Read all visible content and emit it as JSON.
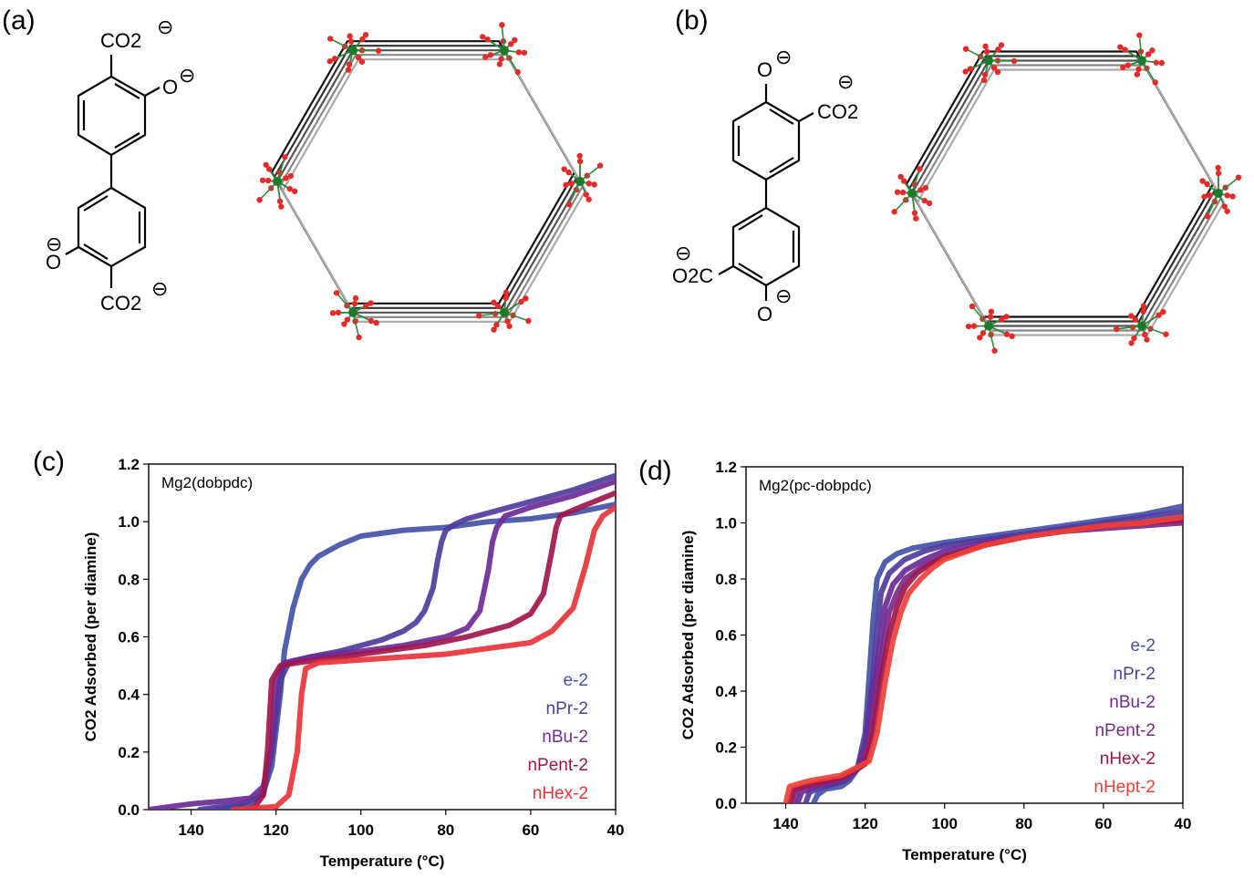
{
  "panels": {
    "a": "(a)",
    "b": "(b)",
    "c": "(c)",
    "d": "(d)"
  },
  "molecule_a": {
    "top": "CO2",
    "top_charge": "⊖",
    "right_o": "O",
    "right_charge": "⊖",
    "left_o": "O",
    "left_charge": "⊖",
    "bottom": "CO2",
    "bottom_charge": "⊖"
  },
  "molecule_b": {
    "top_o": "O",
    "top_charge": "⊖",
    "right": "CO2",
    "right_charge": "⊖",
    "left": "O2C",
    "left_charge": "⊖",
    "bottom_o": "O",
    "bottom_charge": "⊖"
  },
  "colors": {
    "e-2": "#4452a6",
    "nPr-2": "#4f3c9c",
    "nBu-2": "#6d2b97",
    "nPent-2": "#a1164c",
    "nHex-2": "#e8343a",
    "nHept-2": "#ef4037"
  },
  "chart_data": [
    {
      "type": "line",
      "title": "Mg2(dobpdc)",
      "xlabel": "Temperature (°C)",
      "ylabel": "CO2 Adsorbed (per diamine)",
      "xlim": [
        150,
        40
      ],
      "ylim": [
        0,
        1.2
      ],
      "xticks": [
        140,
        120,
        100,
        80,
        60,
        40
      ],
      "yticks": [
        0.0,
        0.2,
        0.4,
        0.6,
        0.8,
        1.0,
        1.2
      ],
      "legend": "bottom-right",
      "series": [
        {
          "name": "e-2",
          "color": "#4452a6",
          "x": [
            134,
            126,
            123,
            121,
            119,
            118,
            116,
            114,
            112,
            110,
            105,
            100,
            90,
            80,
            70,
            60,
            50,
            40
          ],
          "y": [
            0.0,
            0.02,
            0.06,
            0.15,
            0.4,
            0.55,
            0.7,
            0.8,
            0.85,
            0.88,
            0.92,
            0.95,
            0.97,
            0.98,
            1.0,
            1.01,
            1.03,
            1.06
          ]
        },
        {
          "name": "nPr-2",
          "color": "#4f3c9c",
          "x": [
            138,
            128,
            123,
            121,
            119,
            117,
            112,
            105,
            100,
            95,
            90,
            87,
            85,
            83,
            82,
            81,
            80,
            78,
            75,
            70,
            60,
            50,
            40
          ],
          "y": [
            0.0,
            0.02,
            0.05,
            0.2,
            0.45,
            0.51,
            0.53,
            0.55,
            0.57,
            0.59,
            0.62,
            0.65,
            0.69,
            0.77,
            0.86,
            0.93,
            0.97,
            0.99,
            1.01,
            1.03,
            1.07,
            1.11,
            1.16
          ]
        },
        {
          "name": "nBu-2",
          "color": "#6d2b97",
          "x": [
            150,
            140,
            132,
            126,
            123,
            121,
            120,
            118,
            112,
            100,
            90,
            80,
            75,
            72,
            70,
            69,
            68,
            66,
            60,
            50,
            40
          ],
          "y": [
            0.0,
            0.02,
            0.03,
            0.04,
            0.08,
            0.22,
            0.45,
            0.51,
            0.53,
            0.55,
            0.57,
            0.6,
            0.63,
            0.69,
            0.83,
            0.93,
            0.98,
            1.02,
            1.05,
            1.09,
            1.14
          ]
        },
        {
          "name": "nPent-2",
          "color": "#a1164c",
          "x": [
            127,
            125,
            123,
            122,
            121,
            119,
            115,
            105,
            95,
            85,
            75,
            65,
            60,
            57,
            55,
            54,
            53,
            50,
            45,
            40
          ],
          "y": [
            0.0,
            0.01,
            0.05,
            0.2,
            0.45,
            0.5,
            0.51,
            0.53,
            0.55,
            0.57,
            0.6,
            0.64,
            0.68,
            0.75,
            0.9,
            0.98,
            1.02,
            1.04,
            1.07,
            1.1
          ]
        },
        {
          "name": "nHex-2",
          "color": "#e8343a",
          "x": [
            130,
            120,
            117,
            115,
            114,
            113,
            110,
            100,
            90,
            80,
            70,
            60,
            55,
            50,
            47,
            45,
            43,
            41,
            40
          ],
          "y": [
            0.0,
            0.01,
            0.05,
            0.2,
            0.4,
            0.49,
            0.51,
            0.52,
            0.53,
            0.54,
            0.56,
            0.58,
            0.62,
            0.7,
            0.85,
            0.97,
            1.02,
            1.04,
            1.05
          ]
        }
      ]
    },
    {
      "type": "line",
      "title": "Mg2(pc-dobpdc)",
      "xlabel": "Temperature (°C)",
      "ylabel": "CO2 Adsorbed (per diamine)",
      "xlim": [
        150,
        40
      ],
      "ylim": [
        0,
        1.2
      ],
      "xticks": [
        140,
        120,
        100,
        80,
        60,
        40
      ],
      "yticks": [
        0.0,
        0.2,
        0.4,
        0.6,
        0.8,
        1.0,
        1.2
      ],
      "legend": "bottom-right",
      "series": [
        {
          "name": "e-2",
          "color": "#4452a6",
          "x": [
            133,
            132,
            130,
            126,
            124,
            122,
            120,
            119,
            118,
            117,
            115,
            112,
            108,
            100,
            90,
            80,
            70,
            60,
            50,
            40
          ],
          "y": [
            0.0,
            0.03,
            0.05,
            0.06,
            0.08,
            0.12,
            0.25,
            0.45,
            0.65,
            0.8,
            0.86,
            0.89,
            0.91,
            0.93,
            0.95,
            0.97,
            0.99,
            1.01,
            1.03,
            1.06
          ]
        },
        {
          "name": "nPr-2",
          "color": "#4f3c9c",
          "x": [
            135,
            134,
            130,
            125,
            122,
            120,
            118,
            117,
            116,
            114,
            110,
            105,
            100,
            90,
            80,
            70,
            60,
            50,
            40
          ],
          "y": [
            0.0,
            0.04,
            0.06,
            0.08,
            0.12,
            0.22,
            0.45,
            0.62,
            0.75,
            0.82,
            0.87,
            0.9,
            0.92,
            0.94,
            0.96,
            0.98,
            1.0,
            1.02,
            1.04
          ]
        },
        {
          "name": "nBu-2",
          "color": "#6d2b97",
          "x": [
            137,
            136,
            132,
            126,
            122,
            120,
            118,
            116,
            115,
            113,
            110,
            105,
            100,
            90,
            80,
            70,
            60,
            50,
            40
          ],
          "y": [
            0.0,
            0.04,
            0.06,
            0.08,
            0.12,
            0.2,
            0.4,
            0.6,
            0.7,
            0.78,
            0.83,
            0.87,
            0.9,
            0.93,
            0.95,
            0.97,
            0.99,
            1.0,
            1.02
          ]
        },
        {
          "name": "nPent-2",
          "color": "#7a2a8a",
          "x": [
            138,
            137,
            132,
            126,
            121,
            119,
            117,
            115,
            114,
            112,
            110,
            105,
            100,
            90,
            80,
            70,
            60,
            50,
            40
          ],
          "y": [
            0.0,
            0.05,
            0.07,
            0.09,
            0.13,
            0.22,
            0.42,
            0.6,
            0.68,
            0.75,
            0.8,
            0.85,
            0.88,
            0.92,
            0.95,
            0.97,
            0.98,
            0.99,
            1.0
          ]
        },
        {
          "name": "nHex-2",
          "color": "#a1164c",
          "x": [
            139,
            138,
            133,
            126,
            120,
            118,
            116,
            114,
            112,
            110,
            107,
            104,
            100,
            90,
            80,
            70,
            60,
            50,
            40
          ],
          "y": [
            0.0,
            0.05,
            0.07,
            0.09,
            0.14,
            0.25,
            0.45,
            0.6,
            0.7,
            0.77,
            0.82,
            0.85,
            0.88,
            0.92,
            0.95,
            0.97,
            0.99,
            1.0,
            1.01
          ]
        },
        {
          "name": "nHept-2",
          "color": "#ef4037",
          "x": [
            140,
            139,
            134,
            126,
            119,
            117,
            115,
            113,
            111,
            109,
            106,
            103,
            100,
            90,
            80,
            70,
            60,
            50,
            40
          ],
          "y": [
            0.0,
            0.06,
            0.08,
            0.1,
            0.15,
            0.25,
            0.43,
            0.58,
            0.68,
            0.75,
            0.8,
            0.84,
            0.87,
            0.92,
            0.95,
            0.97,
            0.99,
            1.0,
            1.02
          ]
        }
      ]
    }
  ]
}
